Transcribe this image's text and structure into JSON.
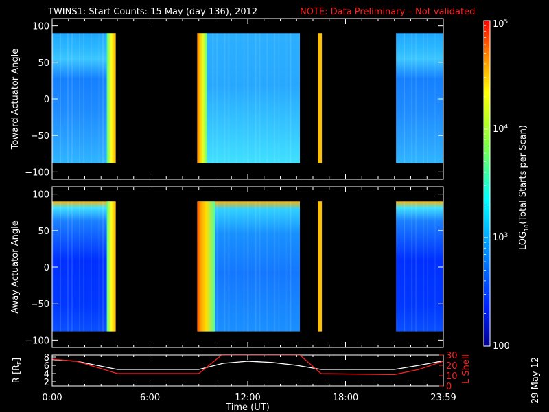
{
  "title": "TWINS1: Start Counts: 15 May (day 136), 2012",
  "note": "NOTE: Data Preliminary – Not validated",
  "date_stamp": "29 May 12",
  "colors": {
    "background": "#000000",
    "axis": "#ffffff",
    "note": "#ff2020",
    "r_line": "#ffffff",
    "l_shell_line": "#ff2020"
  },
  "chart_data": [
    {
      "type": "heatmap",
      "ylabel": "Toward Actuator Angle",
      "yticks": [
        "100",
        "50",
        "0",
        "−50",
        "−100"
      ],
      "ylim": [
        -110,
        110
      ],
      "data_yrange": [
        -88,
        90
      ],
      "xlim": [
        0,
        24
      ],
      "data_blocks_hours": [
        [
          0,
          3.9
        ],
        [
          8.9,
          15.2
        ],
        [
          16.3,
          16.55
        ],
        [
          21.1,
          24
        ]
      ],
      "bright_bands_hours": [
        [
          3.35,
          3.9
        ],
        [
          8.9,
          9.5
        ],
        [
          16.3,
          16.55
        ]
      ]
    },
    {
      "type": "heatmap",
      "ylabel": "Away Actuator Angle",
      "yticks": [
        "100",
        "50",
        "0",
        "−50",
        "−100"
      ],
      "ylim": [
        -110,
        110
      ],
      "data_yrange": [
        -88,
        90
      ],
      "xlim": [
        0,
        24
      ],
      "data_blocks_hours": [
        [
          0,
          3.9
        ],
        [
          8.9,
          15.2
        ],
        [
          16.3,
          16.55
        ],
        [
          21.1,
          24
        ]
      ],
      "bright_bands_hours": [
        [
          3.35,
          3.9
        ],
        [
          8.9,
          10.0
        ],
        [
          16.3,
          16.55
        ]
      ]
    },
    {
      "type": "line",
      "xlabel": "Time (UT)",
      "xticks": [
        "0:00",
        "6:00",
        "12:00",
        "18:00",
        "23:59"
      ],
      "xtick_hours": [
        0,
        6,
        12,
        18,
        24
      ],
      "ylabel_left": "R [R",
      "ylabel_left_sub": "E",
      "ylabel_left_close": "]",
      "yticks_left": [
        "8",
        "6",
        "4",
        "2"
      ],
      "ylim_left": [
        1,
        8.5
      ],
      "ylabel_right": "L Shell",
      "yticks_right": [
        "30",
        "20",
        "10",
        "0"
      ],
      "ylim_right": [
        0,
        30
      ],
      "series": [
        {
          "axis": "left",
          "x": [
            0,
            1.5,
            4,
            9,
            10.5,
            12,
            13.5,
            15,
            16.5,
            21,
            22.5,
            24
          ],
          "y": [
            7.4,
            7.0,
            5.0,
            5.0,
            6.5,
            7.0,
            6.7,
            6.0,
            5.0,
            5.0,
            6.0,
            7.1
          ]
        },
        {
          "axis": "right",
          "x": [
            0,
            1.5,
            4,
            9,
            10.4,
            15.2,
            16.5,
            21,
            22.5,
            24
          ],
          "y": [
            26,
            24,
            12,
            12,
            30,
            30,
            12,
            11,
            16,
            24
          ]
        }
      ]
    }
  ],
  "colorbar": {
    "label": "LOG",
    "label_sub": "10",
    "label_rest": "(Total Starts per Scan)",
    "ticks": [
      {
        "base": "10",
        "exp": "5",
        "log": 5
      },
      {
        "base": "10",
        "exp": "4",
        "log": 4
      },
      {
        "base": "10",
        "exp": "3",
        "log": 3
      },
      {
        "base": "100",
        "exp": "",
        "log": 2
      }
    ],
    "range_log": [
      2,
      5
    ]
  }
}
